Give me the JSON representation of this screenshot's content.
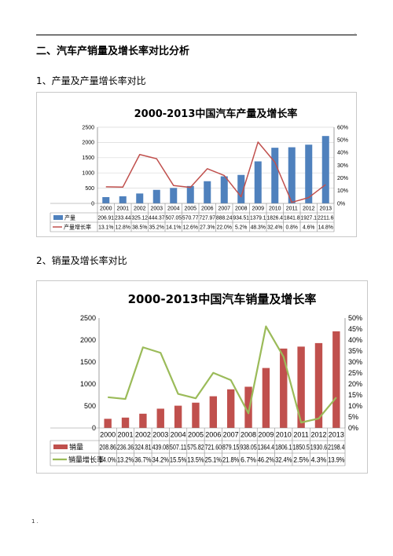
{
  "doc": {
    "heading_main": "二、汽车产销量及增长率对比分析",
    "heading_prod": "1、产量及产量增长率对比",
    "heading_sales": "2、销量及增长率对比",
    "top_mark": ".",
    "foot_mark": "1 ."
  },
  "chart_data": [
    {
      "type": "bar",
      "title": "2000-2013中国汽车产量及增长率",
      "categories": [
        "2000",
        "2001",
        "2002",
        "2003",
        "2004",
        "2005",
        "2006",
        "2007",
        "2008",
        "2009",
        "2010",
        "2011",
        "2012",
        "2013"
      ],
      "series": [
        {
          "name": "产量",
          "kind": "bar",
          "color": "#4f81bd",
          "values": [
            206.91,
            233.44,
            325.12,
            444.37,
            507.05,
            570.77,
            727.97,
            888.24,
            934.51,
            1379.1,
            1826.4,
            1841.8,
            1927.1,
            2211.6
          ],
          "labels": [
            "206.91",
            "233.44",
            "325.12",
            "444.37",
            "507.05",
            "570.77",
            "727.97",
            "888.24",
            "934.51",
            "1379.1",
            "1826.4",
            "1841.8",
            "1927.1",
            "2211.6"
          ]
        },
        {
          "name": "产量增长率",
          "kind": "line",
          "color": "#c0504d",
          "axis": "right",
          "values": [
            13.1,
            12.8,
            38.5,
            35.2,
            14.1,
            12.6,
            27.3,
            22.0,
            5.2,
            48.3,
            32.4,
            0.8,
            4.6,
            14.8
          ],
          "labels": [
            "13.1%",
            "12.8%",
            "38.5%",
            "35.2%",
            "14.1%",
            "12.6%",
            "27.3%",
            "22.0%",
            "5.2%",
            "48.3%",
            "32.4%",
            "0.8%",
            "4.6%",
            "14.8%"
          ]
        }
      ],
      "ylim": [
        0,
        2500
      ],
      "yticks": [
        "0",
        "500",
        "1000",
        "1500",
        "2000",
        "2500"
      ],
      "y2lim": [
        0,
        60
      ],
      "y2ticks": [
        "0%",
        "10%",
        "20%",
        "30%",
        "40%",
        "50%",
        "60%"
      ],
      "grid": true,
      "legend": "data-table"
    },
    {
      "type": "bar",
      "title": "2000-2013中国汽车销量及增长率",
      "categories": [
        "2000",
        "2001",
        "2002",
        "2003",
        "2004",
        "2005",
        "2006",
        "2007",
        "2008",
        "2009",
        "2010",
        "2011",
        "2012",
        "2013"
      ],
      "series": [
        {
          "name": "销量",
          "kind": "bar",
          "color": "#c0504d",
          "values": [
            208.86,
            236.36,
            324.81,
            439.08,
            507.11,
            575.82,
            721.6,
            879.15,
            938.05,
            1364.4,
            1806.1,
            1850.5,
            1930.6,
            2198.4
          ],
          "labels": [
            "208.86",
            "236.36",
            "324.81",
            "439.08",
            "507.11",
            "575.82",
            "721.60",
            "879.15",
            "938.05",
            "1364.4",
            "1806.1",
            "1850.5",
            "1930.6",
            "2198.4"
          ]
        },
        {
          "name": "销量增长率",
          "kind": "line",
          "color": "#9bbb59",
          "axis": "right",
          "values": [
            14.0,
            13.2,
            36.7,
            34.2,
            15.5,
            13.5,
            25.1,
            21.8,
            6.7,
            46.2,
            32.4,
            2.5,
            4.3,
            13.9
          ],
          "labels": [
            "14.0%",
            "13.2%",
            "36.7%",
            "34.2%",
            "15.5%",
            "13.5%",
            "25.1%",
            "21.8%",
            "6.7%",
            "46.2%",
            "32.4%",
            "2.5%",
            "4.3%",
            "13.9%"
          ]
        }
      ],
      "ylim": [
        0,
        2500
      ],
      "yticks": [
        "0",
        "500",
        "1000",
        "1500",
        "2000",
        "2500"
      ],
      "y2lim": [
        0,
        50
      ],
      "y2ticks": [
        "0%",
        "5%",
        "10%",
        "15%",
        "20%",
        "25%",
        "30%",
        "35%",
        "40%",
        "45%",
        "50%"
      ],
      "grid": false,
      "legend": "data-table"
    }
  ]
}
